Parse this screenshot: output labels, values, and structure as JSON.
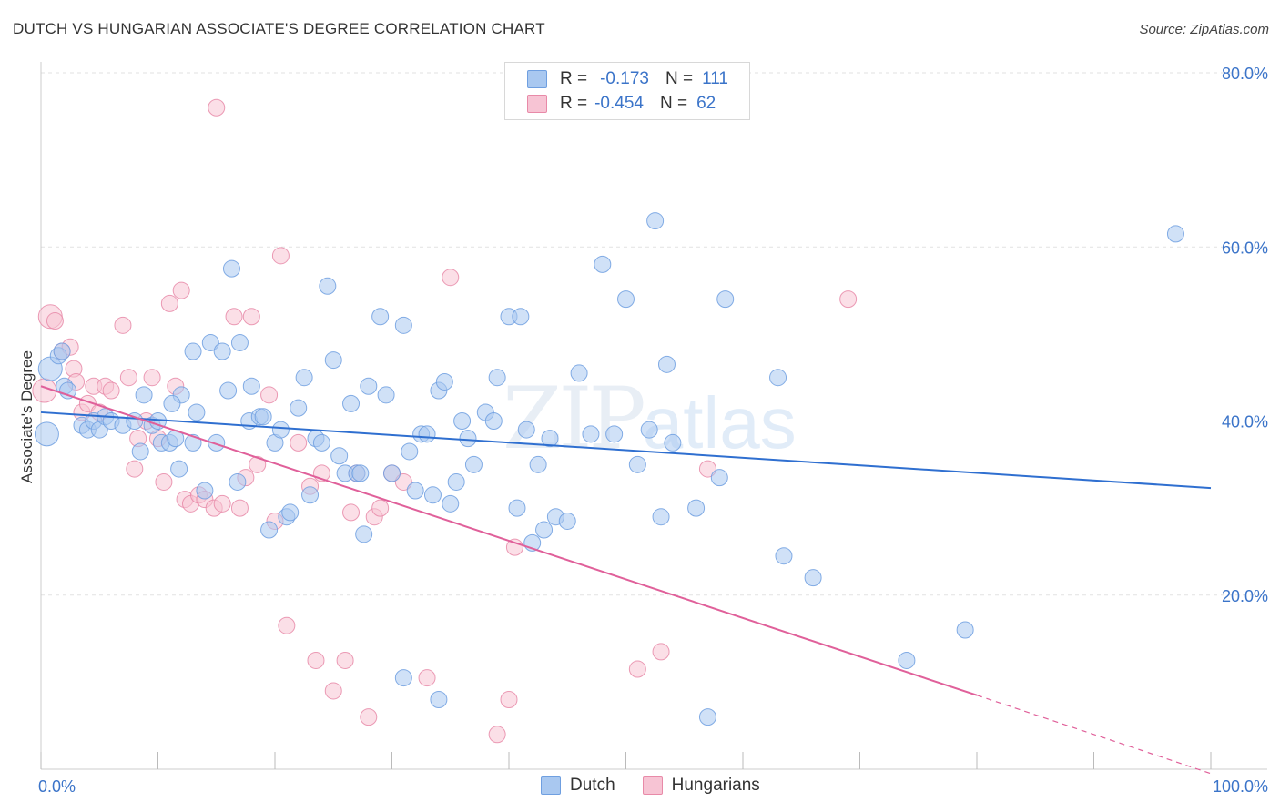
{
  "title": "DUTCH VS HUNGARIAN ASSOCIATE'S DEGREE CORRELATION CHART",
  "source": "Source: ZipAtlas.com",
  "watermark": {
    "zip": "ZIP",
    "atlas": "atlas"
  },
  "legend": {
    "rows": [
      {
        "r_label": "R =",
        "r_value": "-0.173",
        "n_label": "N =",
        "n_value": "111",
        "color": "#a9c8f0",
        "border": "#6f9fe0"
      },
      {
        "r_label": "R =",
        "r_value": "-0.454",
        "n_label": "N =",
        "n_value": "62",
        "color": "#f7c4d4",
        "border": "#e88aa8"
      }
    ]
  },
  "bottom_legend": {
    "dutch": "Dutch",
    "hungarians": "Hungarians"
  },
  "chart_data": {
    "type": "scatter",
    "title": "DUTCH VS HUNGARIAN ASSOCIATE'S DEGREE CORRELATION CHART",
    "xlabel": "",
    "ylabel": "Associate's Degree",
    "xlim": [
      0,
      100
    ],
    "ylim": [
      0,
      80
    ],
    "x_tick_labels": [
      "0.0%",
      "100.0%"
    ],
    "y_ticks": [
      20,
      40,
      60,
      80
    ],
    "y_tick_labels": [
      "20.0%",
      "40.0%",
      "60.0%",
      "80.0%"
    ],
    "grid": true,
    "series": [
      {
        "name": "Dutch",
        "color": "#6f9fe0",
        "fill": "#a9c8f0",
        "trend": {
          "x0": 0,
          "y0": 41.0,
          "x1": 100,
          "y1": 32.3
        },
        "points": [
          [
            0.5,
            38.5
          ],
          [
            0.8,
            46
          ],
          [
            1.5,
            47.5
          ],
          [
            1.8,
            48
          ],
          [
            2,
            44
          ],
          [
            2.3,
            43.5
          ],
          [
            3.5,
            39.5
          ],
          [
            4,
            39
          ],
          [
            4.5,
            40
          ],
          [
            5,
            39
          ],
          [
            5.5,
            40.5
          ],
          [
            6,
            40
          ],
          [
            7,
            39.5
          ],
          [
            8,
            40
          ],
          [
            8.5,
            36.5
          ],
          [
            8.8,
            43
          ],
          [
            9.5,
            39.5
          ],
          [
            10,
            40
          ],
          [
            10.3,
            37.5
          ],
          [
            11,
            37.5
          ],
          [
            11.5,
            38
          ],
          [
            11.8,
            34.5
          ],
          [
            12,
            43
          ],
          [
            13,
            37.5
          ],
          [
            13.3,
            41
          ],
          [
            14,
            32
          ],
          [
            14.5,
            49
          ],
          [
            15,
            37.5
          ],
          [
            15.5,
            48
          ],
          [
            16,
            43.5
          ],
          [
            16.3,
            57.5
          ],
          [
            16.8,
            33
          ],
          [
            17,
            49
          ],
          [
            18,
            44
          ],
          [
            17.8,
            40
          ],
          [
            18.7,
            40.5
          ],
          [
            19,
            40.5
          ],
          [
            19.5,
            27.5
          ],
          [
            20,
            37.5
          ],
          [
            20.5,
            39
          ],
          [
            21,
            29
          ],
          [
            21.3,
            29.5
          ],
          [
            22,
            41.5
          ],
          [
            22.5,
            45
          ],
          [
            23,
            31.5
          ],
          [
            23.5,
            38
          ],
          [
            24,
            37.5
          ],
          [
            24.5,
            55.5
          ],
          [
            25,
            47
          ],
          [
            25.5,
            36
          ],
          [
            26,
            34
          ],
          [
            26.5,
            42
          ],
          [
            27,
            34
          ],
          [
            27.3,
            34
          ],
          [
            27.6,
            27
          ],
          [
            28,
            44
          ],
          [
            29,
            52
          ],
          [
            29.5,
            43
          ],
          [
            30,
            34
          ],
          [
            31,
            51
          ],
          [
            31.5,
            36.5
          ],
          [
            32,
            32
          ],
          [
            32.5,
            38.5
          ],
          [
            33,
            38.5
          ],
          [
            33.5,
            31.5
          ],
          [
            34,
            43.5
          ],
          [
            34.5,
            44.5
          ],
          [
            35,
            30.5
          ],
          [
            35.5,
            33
          ],
          [
            36,
            40
          ],
          [
            36.5,
            38
          ],
          [
            37,
            35
          ],
          [
            38,
            41
          ],
          [
            38.7,
            40
          ],
          [
            39,
            45
          ],
          [
            40,
            52
          ],
          [
            40.7,
            30
          ],
          [
            41,
            52
          ],
          [
            41.5,
            39
          ],
          [
            42,
            26
          ],
          [
            42.5,
            35
          ],
          [
            43,
            27.5
          ],
          [
            43.5,
            38
          ],
          [
            44,
            29
          ],
          [
            45,
            28.5
          ],
          [
            46,
            45.5
          ],
          [
            47,
            38.5
          ],
          [
            48,
            58
          ],
          [
            49,
            38.5
          ],
          [
            50,
            54
          ],
          [
            51,
            35
          ],
          [
            52,
            39
          ],
          [
            52.5,
            63
          ],
          [
            53,
            29
          ],
          [
            53.5,
            46.5
          ],
          [
            54,
            37.5
          ],
          [
            56,
            30
          ],
          [
            58,
            33.5
          ],
          [
            58.5,
            54
          ],
          [
            63,
            45
          ],
          [
            63.5,
            24.5
          ],
          [
            66,
            22
          ],
          [
            74,
            12.5
          ],
          [
            79,
            16
          ],
          [
            97,
            61.5
          ],
          [
            31,
            10.5
          ],
          [
            34,
            8
          ],
          [
            57,
            6
          ],
          [
            13,
            48
          ],
          [
            11.2,
            42
          ]
        ]
      },
      {
        "name": "Hungarians",
        "color": "#e88aa8",
        "fill": "#f7c4d4",
        "trend": {
          "x0": 0,
          "y0": 44.0,
          "x1": 80,
          "y1": 8.5,
          "dash_x1": 100,
          "dash_y1": -0.5
        },
        "points": [
          [
            0.3,
            43.5
          ],
          [
            0.8,
            52
          ],
          [
            1.2,
            51.5
          ],
          [
            1.8,
            48
          ],
          [
            2.5,
            48.5
          ],
          [
            2.8,
            46
          ],
          [
            3,
            44.5
          ],
          [
            3.5,
            41
          ],
          [
            4,
            42
          ],
          [
            4.5,
            44
          ],
          [
            5,
            41
          ],
          [
            5.5,
            44
          ],
          [
            6,
            43.5
          ],
          [
            7,
            51
          ],
          [
            7.5,
            45
          ],
          [
            8,
            34.5
          ],
          [
            8.3,
            38
          ],
          [
            9,
            40
          ],
          [
            9.5,
            45
          ],
          [
            10,
            38
          ],
          [
            10.5,
            33
          ],
          [
            11,
            53.5
          ],
          [
            11.5,
            44
          ],
          [
            12,
            55
          ],
          [
            12.3,
            31
          ],
          [
            12.8,
            30.5
          ],
          [
            13.5,
            31.5
          ],
          [
            14,
            31
          ],
          [
            14.8,
            30
          ],
          [
            15,
            76
          ],
          [
            15.5,
            30.5
          ],
          [
            16.5,
            52
          ],
          [
            17,
            30
          ],
          [
            17.5,
            33.5
          ],
          [
            18,
            52
          ],
          [
            18.5,
            35
          ],
          [
            19.5,
            43
          ],
          [
            20,
            28.5
          ],
          [
            20.5,
            59
          ],
          [
            21,
            16.5
          ],
          [
            22,
            37.5
          ],
          [
            23,
            32.5
          ],
          [
            23.5,
            12.5
          ],
          [
            24,
            34
          ],
          [
            25,
            9
          ],
          [
            26,
            12.5
          ],
          [
            26.5,
            29.5
          ],
          [
            27,
            34
          ],
          [
            28,
            6
          ],
          [
            28.5,
            29
          ],
          [
            29,
            30
          ],
          [
            30,
            34
          ],
          [
            31,
            33
          ],
          [
            33,
            10.5
          ],
          [
            35,
            56.5
          ],
          [
            39,
            4
          ],
          [
            40,
            8
          ],
          [
            40.5,
            25.5
          ],
          [
            51,
            11.5
          ],
          [
            53,
            13.5
          ],
          [
            57,
            34.5
          ],
          [
            69,
            54
          ]
        ]
      }
    ]
  }
}
